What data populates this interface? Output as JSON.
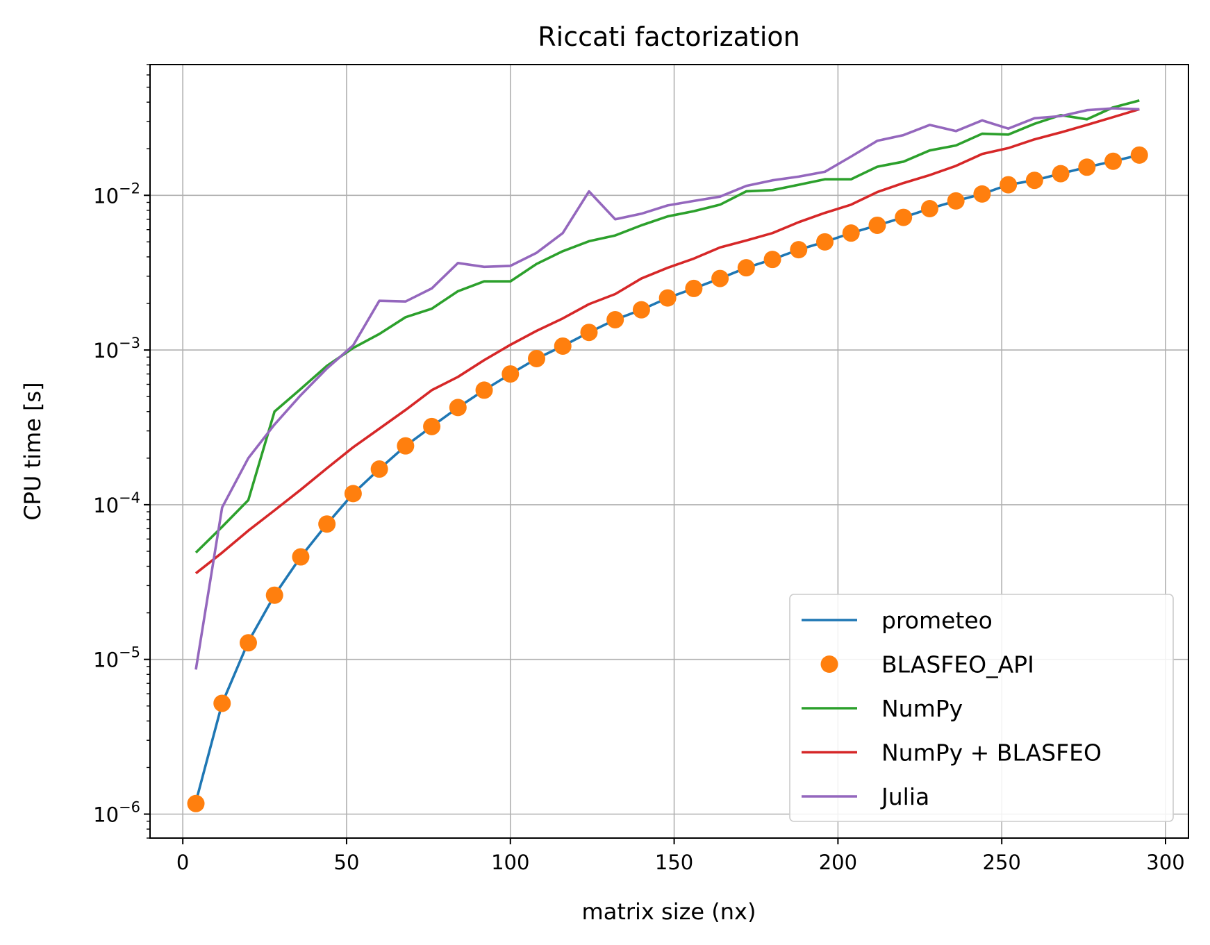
{
  "chart_data": {
    "type": "line",
    "title": "Riccati factorization",
    "xlabel": "matrix size (nx)",
    "ylabel": "CPU time [s]",
    "xlim": [
      -10,
      307
    ],
    "ylim": [
      7e-07,
      0.07
    ],
    "yscale": "log",
    "grid": true,
    "legend_position": "lower-right",
    "x_ticks": [
      0,
      50,
      100,
      150,
      200,
      250,
      300
    ],
    "y_ticks": [
      {
        "value": 1e-06,
        "base": "10",
        "exp": "−6"
      },
      {
        "value": 1e-05,
        "base": "10",
        "exp": "−5"
      },
      {
        "value": 0.0001,
        "base": "10",
        "exp": "−4"
      },
      {
        "value": 0.001,
        "base": "10",
        "exp": "−3"
      },
      {
        "value": 0.01,
        "base": "10",
        "exp": "−2"
      }
    ],
    "x": [
      4,
      12,
      20,
      28,
      36,
      44,
      52,
      60,
      68,
      76,
      84,
      92,
      100,
      108,
      116,
      124,
      132,
      140,
      148,
      156,
      164,
      172,
      180,
      188,
      196,
      204,
      212,
      220,
      228,
      236,
      244,
      252,
      260,
      268,
      276,
      284,
      292
    ],
    "series": [
      {
        "name": "prometeo",
        "style": "line",
        "color": "#1f77b4",
        "values": [
          1.2e-06,
          5.2e-06,
          1.3e-05,
          2.6e-05,
          4.6e-05,
          7.5e-05,
          0.000118,
          0.00017,
          0.00024,
          0.00032,
          0.000425,
          0.00055,
          0.0007,
          0.00088,
          0.00106,
          0.0013,
          0.00157,
          0.00182,
          0.00217,
          0.0025,
          0.0029,
          0.0034,
          0.00385,
          0.00445,
          0.005,
          0.0057,
          0.0064,
          0.0072,
          0.0082,
          0.0092,
          0.0102,
          0.0117,
          0.0125,
          0.0138,
          0.0152,
          0.0166,
          0.0182
        ]
      },
      {
        "name": "BLASFEO_API",
        "style": "markers",
        "color": "#ff7f0e",
        "values": [
          1.17e-06,
          5.2e-06,
          1.28e-05,
          2.6e-05,
          4.6e-05,
          7.5e-05,
          0.000118,
          0.00017,
          0.00024,
          0.00032,
          0.000425,
          0.00055,
          0.0007,
          0.00088,
          0.00106,
          0.0013,
          0.00157,
          0.00182,
          0.00217,
          0.0025,
          0.0029,
          0.0034,
          0.00385,
          0.00445,
          0.005,
          0.0057,
          0.0064,
          0.0072,
          0.0082,
          0.0092,
          0.0102,
          0.0117,
          0.0125,
          0.0138,
          0.0152,
          0.0166,
          0.0182
        ]
      },
      {
        "name": "NumPy",
        "style": "line",
        "color": "#2ca02c",
        "values": [
          4.9e-05,
          7.2e-05,
          0.000107,
          0.0004,
          0.00056,
          0.00079,
          0.00103,
          0.00127,
          0.00163,
          0.00185,
          0.0024,
          0.00278,
          0.00278,
          0.0036,
          0.00435,
          0.00505,
          0.0055,
          0.0064,
          0.0073,
          0.0079,
          0.0087,
          0.0106,
          0.0108,
          0.0117,
          0.0127,
          0.0127,
          0.0153,
          0.0165,
          0.0195,
          0.021,
          0.025,
          0.0247,
          0.029,
          0.033,
          0.031,
          0.037,
          0.041
        ]
      },
      {
        "name": "NumPy + BLASFEO",
        "style": "line",
        "color": "#d62728",
        "values": [
          3.6e-05,
          4.9e-05,
          6.8e-05,
          9.2e-05,
          0.000125,
          0.000172,
          0.000235,
          0.00031,
          0.00041,
          0.00055,
          0.00067,
          0.00086,
          0.00108,
          0.00133,
          0.0016,
          0.00198,
          0.0023,
          0.0029,
          0.0034,
          0.0039,
          0.0046,
          0.0051,
          0.0057,
          0.0067,
          0.0077,
          0.0087,
          0.0105,
          0.012,
          0.0135,
          0.0155,
          0.0185,
          0.0202,
          0.023,
          0.0255,
          0.0285,
          0.032,
          0.036
        ]
      },
      {
        "name": "Julia",
        "style": "line",
        "color": "#9467bd",
        "values": [
          8.6e-06,
          9.6e-05,
          0.0002,
          0.00033,
          0.00051,
          0.00076,
          0.00107,
          0.00208,
          0.00206,
          0.0025,
          0.00365,
          0.00345,
          0.0035,
          0.00425,
          0.0057,
          0.0106,
          0.007,
          0.0076,
          0.0086,
          0.0092,
          0.0098,
          0.0115,
          0.0125,
          0.0132,
          0.0142,
          0.0178,
          0.0225,
          0.0245,
          0.0285,
          0.026,
          0.0305,
          0.027,
          0.0315,
          0.0325,
          0.0355,
          0.0365,
          0.036
        ]
      }
    ]
  }
}
